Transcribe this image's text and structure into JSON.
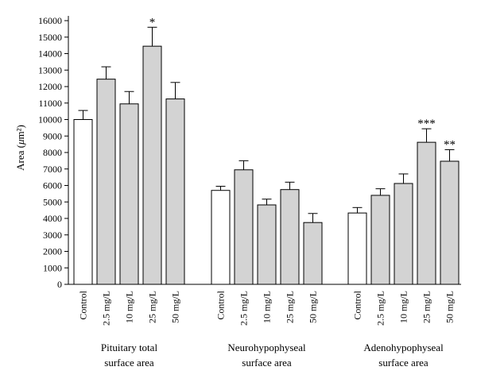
{
  "chart_data": {
    "type": "bar",
    "ylabel": "Area (μm²)",
    "ylim": [
      0,
      16000
    ],
    "yticks": [
      0,
      1000,
      2000,
      3000,
      4000,
      5000,
      6000,
      7000,
      8000,
      9000,
      10000,
      11000,
      12000,
      13000,
      14000,
      15000,
      16000
    ],
    "categories": [
      "Control",
      "2.5 mg/L",
      "10 mg/L",
      "25 mg/L",
      "50 mg/L"
    ],
    "colors": {
      "control": "#ffffff",
      "treated": "#d3d3d3",
      "stroke": "#000000"
    },
    "groups": [
      {
        "label_lines": [
          "Pituitary total",
          "surface area"
        ],
        "values": [
          10000,
          12450,
          10950,
          14450,
          11250
        ],
        "errors": [
          550,
          750,
          750,
          1150,
          1000
        ],
        "annotations": [
          "",
          "",
          "",
          "*",
          ""
        ]
      },
      {
        "label_lines": [
          "Neurohypophyseal",
          "surface area"
        ],
        "values": [
          5700,
          6950,
          4820,
          5750,
          3750
        ],
        "errors": [
          250,
          550,
          350,
          450,
          550
        ],
        "annotations": [
          "",
          "",
          "",
          "",
          ""
        ]
      },
      {
        "label_lines": [
          "Adenohypophyseal",
          "surface area"
        ],
        "values": [
          4330,
          5400,
          6120,
          8620,
          7470
        ],
        "errors": [
          330,
          400,
          580,
          820,
          700
        ],
        "annotations": [
          "",
          "",
          "",
          "***",
          "**"
        ]
      }
    ]
  }
}
